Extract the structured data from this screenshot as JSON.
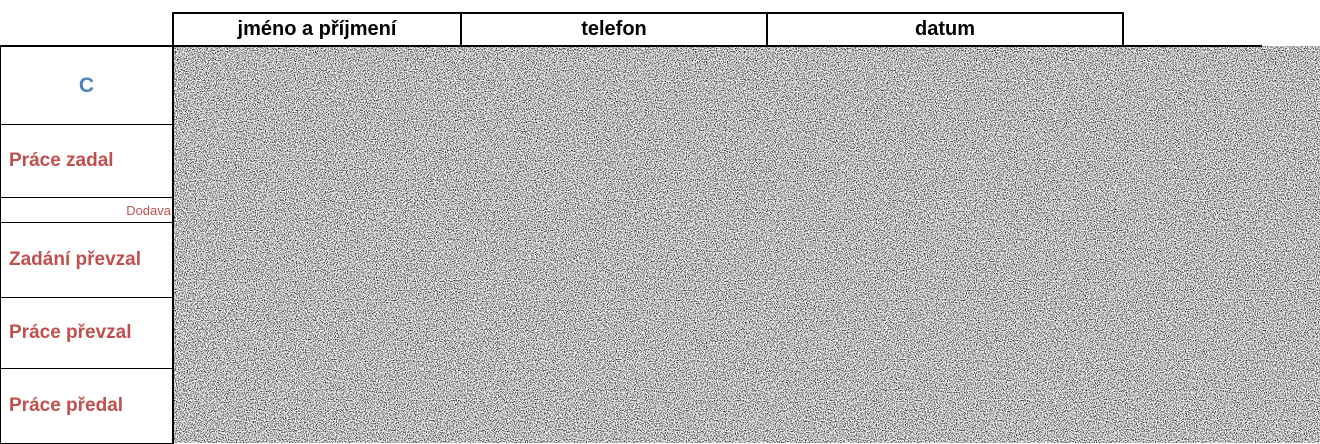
{
  "header": {
    "columns": [
      "jméno a příjmení",
      "telefon",
      "datum"
    ]
  },
  "side": {
    "code": "C",
    "rows": [
      "Práce zadal",
      "Dodava",
      "Zadání převzal",
      "Práce převzal",
      "Práce předal"
    ]
  }
}
